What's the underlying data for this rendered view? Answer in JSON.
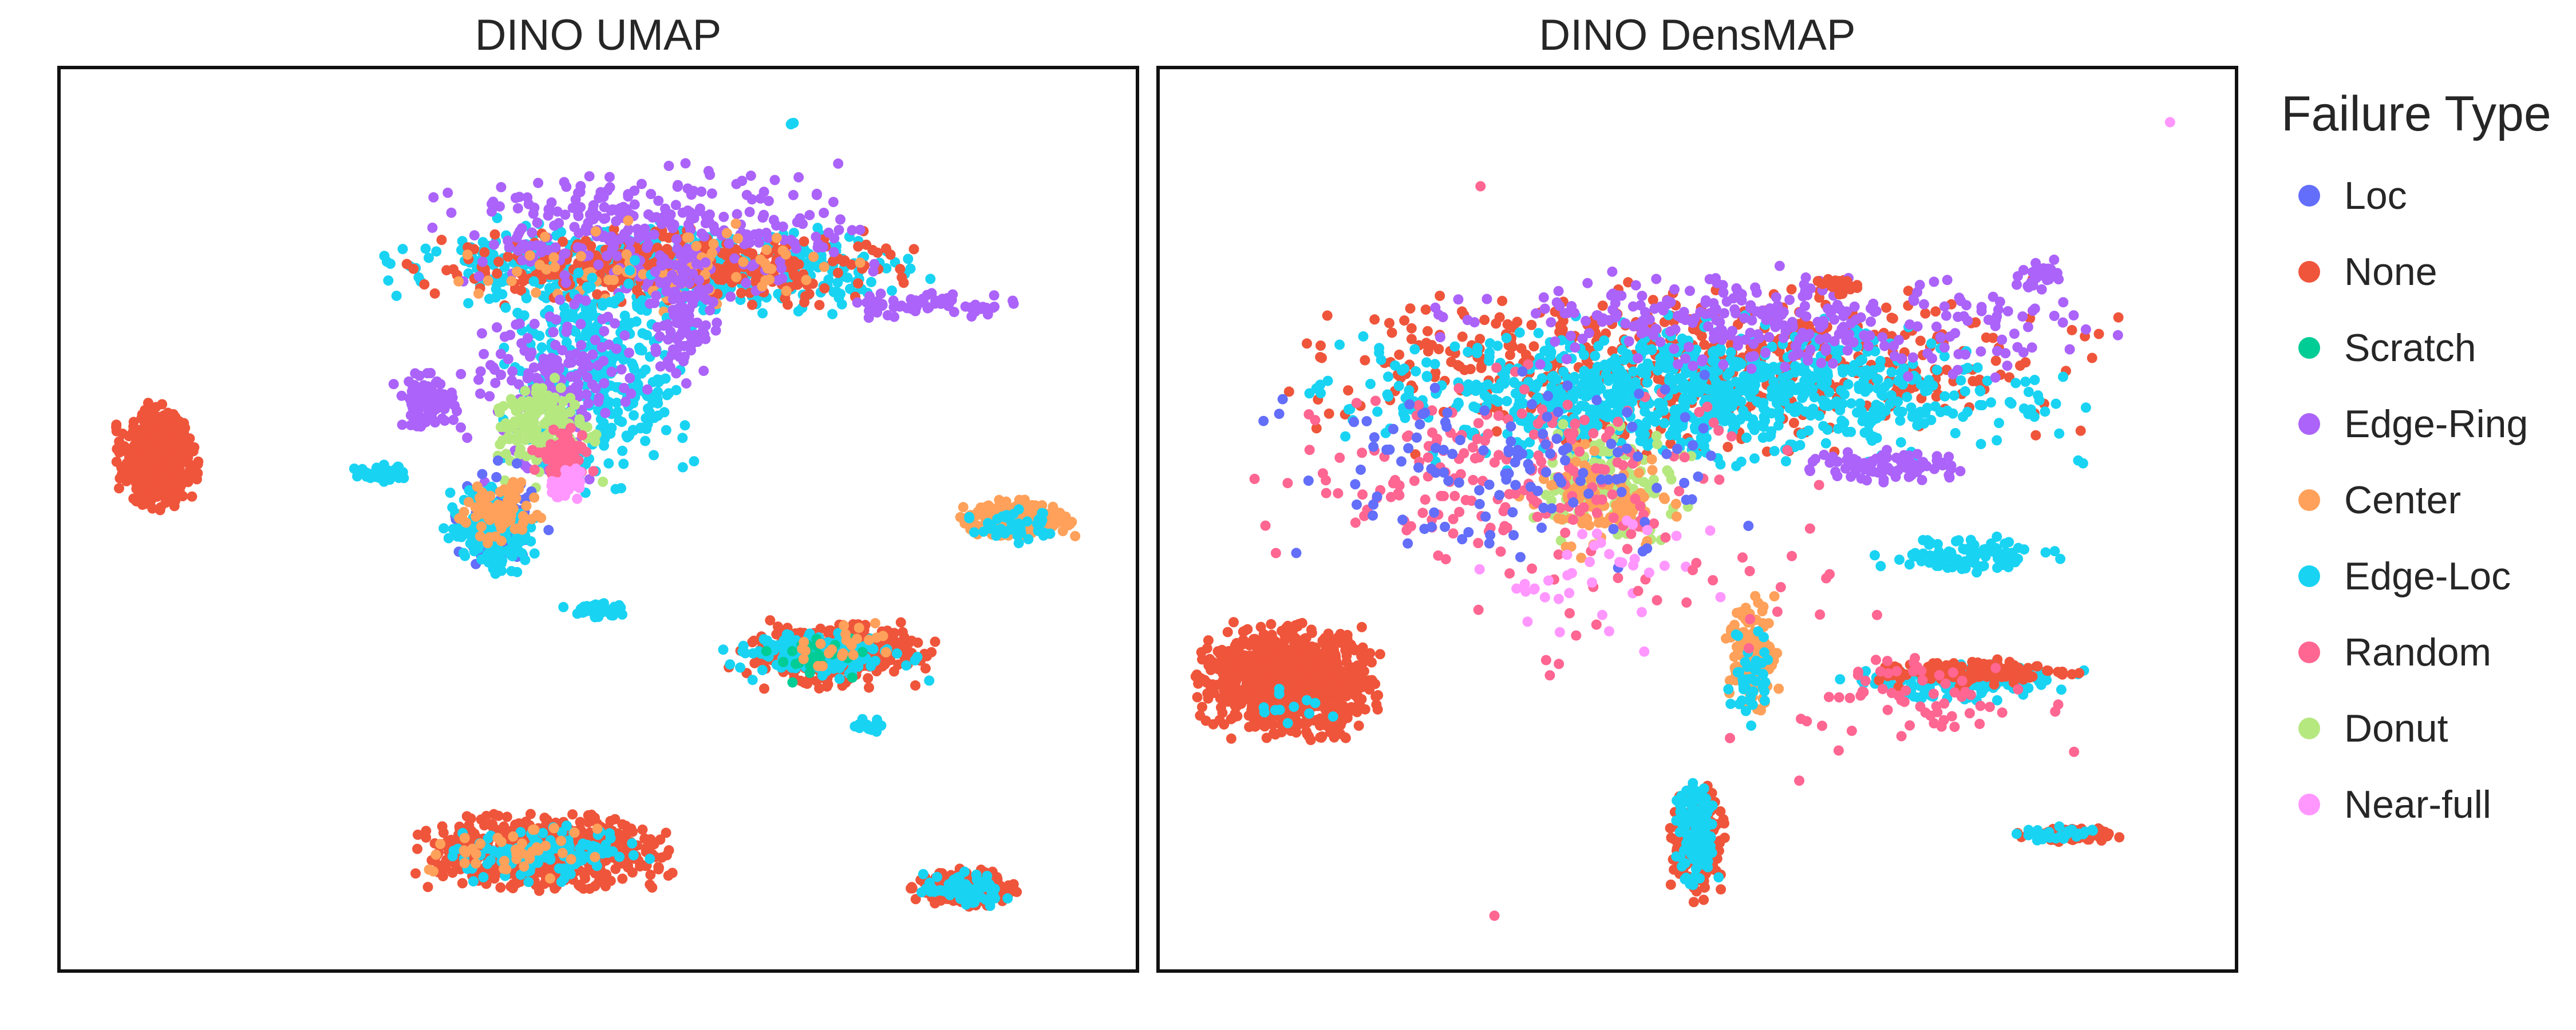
{
  "chart_data": [
    {
      "type": "scatter",
      "title": "DINO UMAP",
      "xlim": [
        0,
        100
      ],
      "ylim": [
        0,
        100
      ],
      "axes_visible": false,
      "grid": false,
      "clusters": [
        {
          "series": "None",
          "cx": 9,
          "cy": 57,
          "rx": 3.5,
          "ry": 5.5,
          "n": 500
        },
        {
          "series": "None",
          "cx": 45,
          "cy": 13,
          "rx": 11,
          "ry": 4,
          "n": 700
        },
        {
          "series": "Edge-Loc",
          "cx": 46,
          "cy": 13,
          "rx": 9,
          "ry": 3,
          "n": 110
        },
        {
          "series": "Center",
          "cx": 43,
          "cy": 13,
          "rx": 8,
          "ry": 3,
          "n": 40
        },
        {
          "series": "None",
          "cx": 72,
          "cy": 35,
          "rx": 9,
          "ry": 3.5,
          "n": 380
        },
        {
          "series": "Edge-Loc",
          "cx": 71,
          "cy": 35,
          "rx": 9,
          "ry": 3,
          "n": 140
        },
        {
          "series": "Scratch",
          "cx": 70,
          "cy": 35,
          "rx": 7,
          "ry": 3,
          "n": 30
        },
        {
          "series": "Center",
          "cx": 73,
          "cy": 36,
          "rx": 6,
          "ry": 3,
          "n": 25
        },
        {
          "series": "None",
          "cx": 84,
          "cy": 9,
          "rx": 4.5,
          "ry": 2,
          "n": 200
        },
        {
          "series": "Edge-Loc",
          "cx": 84,
          "cy": 9,
          "rx": 4,
          "ry": 2,
          "n": 70
        },
        {
          "series": "Center",
          "cx": 89,
          "cy": 50,
          "rx": 5,
          "ry": 2,
          "n": 260
        },
        {
          "series": "Edge-Loc",
          "cx": 89,
          "cy": 49,
          "rx": 5,
          "ry": 2,
          "n": 40
        },
        {
          "series": "Edge-Loc",
          "cx": 56,
          "cy": 78,
          "rx": 24,
          "ry": 5,
          "n": 500
        },
        {
          "series": "None",
          "cx": 56,
          "cy": 78,
          "rx": 22,
          "ry": 4,
          "n": 380
        },
        {
          "series": "Edge-Ring",
          "cx": 55,
          "cy": 82,
          "rx": 20,
          "ry": 7,
          "n": 300
        },
        {
          "series": "Center",
          "cx": 56,
          "cy": 78,
          "rx": 18,
          "ry": 5,
          "n": 80
        },
        {
          "series": "Edge-Loc",
          "cx": 50,
          "cy": 66,
          "rx": 9,
          "ry": 12,
          "n": 320
        },
        {
          "series": "Edge-Ring",
          "cx": 46,
          "cy": 65,
          "rx": 9,
          "ry": 10,
          "n": 160
        },
        {
          "series": "Donut",
          "cx": 45,
          "cy": 60,
          "rx": 5,
          "ry": 6,
          "n": 170
        },
        {
          "series": "Random",
          "cx": 47,
          "cy": 57,
          "rx": 3,
          "ry": 4,
          "n": 80
        },
        {
          "series": "Near-full",
          "cx": 47,
          "cy": 54,
          "rx": 2,
          "ry": 2,
          "n": 40
        },
        {
          "series": "Loc",
          "cx": 41,
          "cy": 50,
          "rx": 4,
          "ry": 6,
          "n": 90
        },
        {
          "series": "Edge-Loc",
          "cx": 40,
          "cy": 49,
          "rx": 4,
          "ry": 5,
          "n": 180
        },
        {
          "series": "Center",
          "cx": 41,
          "cy": 51,
          "rx": 4,
          "ry": 4,
          "n": 70
        },
        {
          "series": "Edge-Ring",
          "cx": 34,
          "cy": 63,
          "rx": 3,
          "ry": 3,
          "n": 90
        },
        {
          "series": "Edge-Ring",
          "cx": 58,
          "cy": 73,
          "rx": 3,
          "ry": 8,
          "n": 110
        },
        {
          "series": "Edge-Loc",
          "cx": 30,
          "cy": 55,
          "rx": 3,
          "ry": 1,
          "n": 40
        },
        {
          "series": "Edge-Ring",
          "cx": 80,
          "cy": 74,
          "rx": 9,
          "ry": 1.5,
          "n": 60
        },
        {
          "series": "Edge-Loc",
          "cx": 50,
          "cy": 40,
          "rx": 3,
          "ry": 1,
          "n": 40
        },
        {
          "series": "Edge-Loc",
          "cx": 75,
          "cy": 27,
          "rx": 2,
          "ry": 1,
          "n": 20
        },
        {
          "series": "None",
          "cx": 7,
          "cy": 59,
          "rx": 0.1,
          "ry": 0.1,
          "n": 1
        },
        {
          "series": "Edge-Loc",
          "cx": 68,
          "cy": 94,
          "rx": 0.2,
          "ry": 0.3,
          "n": 4
        }
      ]
    },
    {
      "type": "scatter",
      "title": "DINO DensMAP",
      "xlim": [
        0,
        100
      ],
      "ylim": [
        0,
        100
      ],
      "axes_visible": false,
      "grid": false,
      "clusters": [
        {
          "series": "None",
          "cx": 12,
          "cy": 32,
          "rx": 8,
          "ry": 6,
          "n": 1000
        },
        {
          "series": "Edge-Loc",
          "cx": 12,
          "cy": 30,
          "rx": 4,
          "ry": 3,
          "n": 12
        },
        {
          "series": "None",
          "cx": 50,
          "cy": 67,
          "rx": 36,
          "ry": 9,
          "n": 600
        },
        {
          "series": "Edge-Loc",
          "cx": 50,
          "cy": 64,
          "rx": 33,
          "ry": 8,
          "n": 900
        },
        {
          "series": "Edge-Ring",
          "cx": 58,
          "cy": 72,
          "rx": 30,
          "ry": 6,
          "n": 300
        },
        {
          "series": "Edge-Ring",
          "cx": 68,
          "cy": 56,
          "rx": 8,
          "ry": 2,
          "n": 80
        },
        {
          "series": "Donut",
          "cx": 42,
          "cy": 54,
          "rx": 7,
          "ry": 6,
          "n": 130
        },
        {
          "series": "Center",
          "cx": 41,
          "cy": 52,
          "rx": 7,
          "ry": 6,
          "n": 100
        },
        {
          "series": "Random",
          "cx": 32,
          "cy": 55,
          "rx": 22,
          "ry": 12,
          "n": 200
        },
        {
          "series": "Loc",
          "cx": 32,
          "cy": 55,
          "rx": 22,
          "ry": 11,
          "n": 130
        },
        {
          "series": "Near-full",
          "cx": 42,
          "cy": 44,
          "rx": 12,
          "ry": 8,
          "n": 40
        },
        {
          "series": "Center",
          "cx": 55,
          "cy": 35,
          "rx": 2.5,
          "ry": 6,
          "n": 140
        },
        {
          "series": "Edge-Loc",
          "cx": 55,
          "cy": 33,
          "rx": 2,
          "ry": 6,
          "n": 40
        },
        {
          "series": "None",
          "cx": 50,
          "cy": 14,
          "rx": 2.5,
          "ry": 6,
          "n": 220
        },
        {
          "series": "Edge-Loc",
          "cx": 50,
          "cy": 15,
          "rx": 2,
          "ry": 6,
          "n": 110
        },
        {
          "series": "Edge-Loc",
          "cx": 74,
          "cy": 32,
          "rx": 11,
          "ry": 2,
          "n": 160
        },
        {
          "series": "None",
          "cx": 76,
          "cy": 33,
          "rx": 10,
          "ry": 1.5,
          "n": 140
        },
        {
          "series": "Random",
          "cx": 72,
          "cy": 30,
          "rx": 12,
          "ry": 6,
          "n": 60
        },
        {
          "series": "None",
          "cx": 85,
          "cy": 15,
          "rx": 5,
          "ry": 0.8,
          "n": 120
        },
        {
          "series": "Edge-Loc",
          "cx": 84,
          "cy": 15,
          "rx": 4,
          "ry": 0.8,
          "n": 30
        },
        {
          "series": "Edge-Loc",
          "cx": 75,
          "cy": 46,
          "rx": 8,
          "ry": 2,
          "n": 100
        },
        {
          "series": "Edge-Ring",
          "cx": 82,
          "cy": 77,
          "rx": 2,
          "ry": 2,
          "n": 25
        },
        {
          "series": "None",
          "cx": 63,
          "cy": 76,
          "rx": 2,
          "ry": 1,
          "n": 20
        },
        {
          "series": "Random",
          "cx": 45,
          "cy": 40,
          "rx": 30,
          "ry": 20,
          "n": 40
        },
        {
          "series": "Near-full",
          "cx": 94,
          "cy": 94,
          "rx": 0.2,
          "ry": 0.2,
          "n": 1
        },
        {
          "series": "Random",
          "cx": 30,
          "cy": 87,
          "rx": 0.2,
          "ry": 0.2,
          "n": 1
        },
        {
          "series": "Random",
          "cx": 31,
          "cy": 6,
          "rx": 0.2,
          "ry": 0.2,
          "n": 1
        }
      ]
    }
  ],
  "legend": {
    "title": "Failure Type",
    "placement": "right",
    "items": [
      {
        "label": "Loc",
        "color": "#636EFA"
      },
      {
        "label": "None",
        "color": "#EF553B"
      },
      {
        "label": "Scratch",
        "color": "#00CC96"
      },
      {
        "label": "Edge-Ring",
        "color": "#AB63FA"
      },
      {
        "label": "Center",
        "color": "#FFA15A"
      },
      {
        "label": "Edge-Loc",
        "color": "#19D3F3"
      },
      {
        "label": "Random",
        "color": "#FF6692"
      },
      {
        "label": "Donut",
        "color": "#B6E880"
      },
      {
        "label": "Near-full",
        "color": "#FF97FF"
      }
    ]
  }
}
